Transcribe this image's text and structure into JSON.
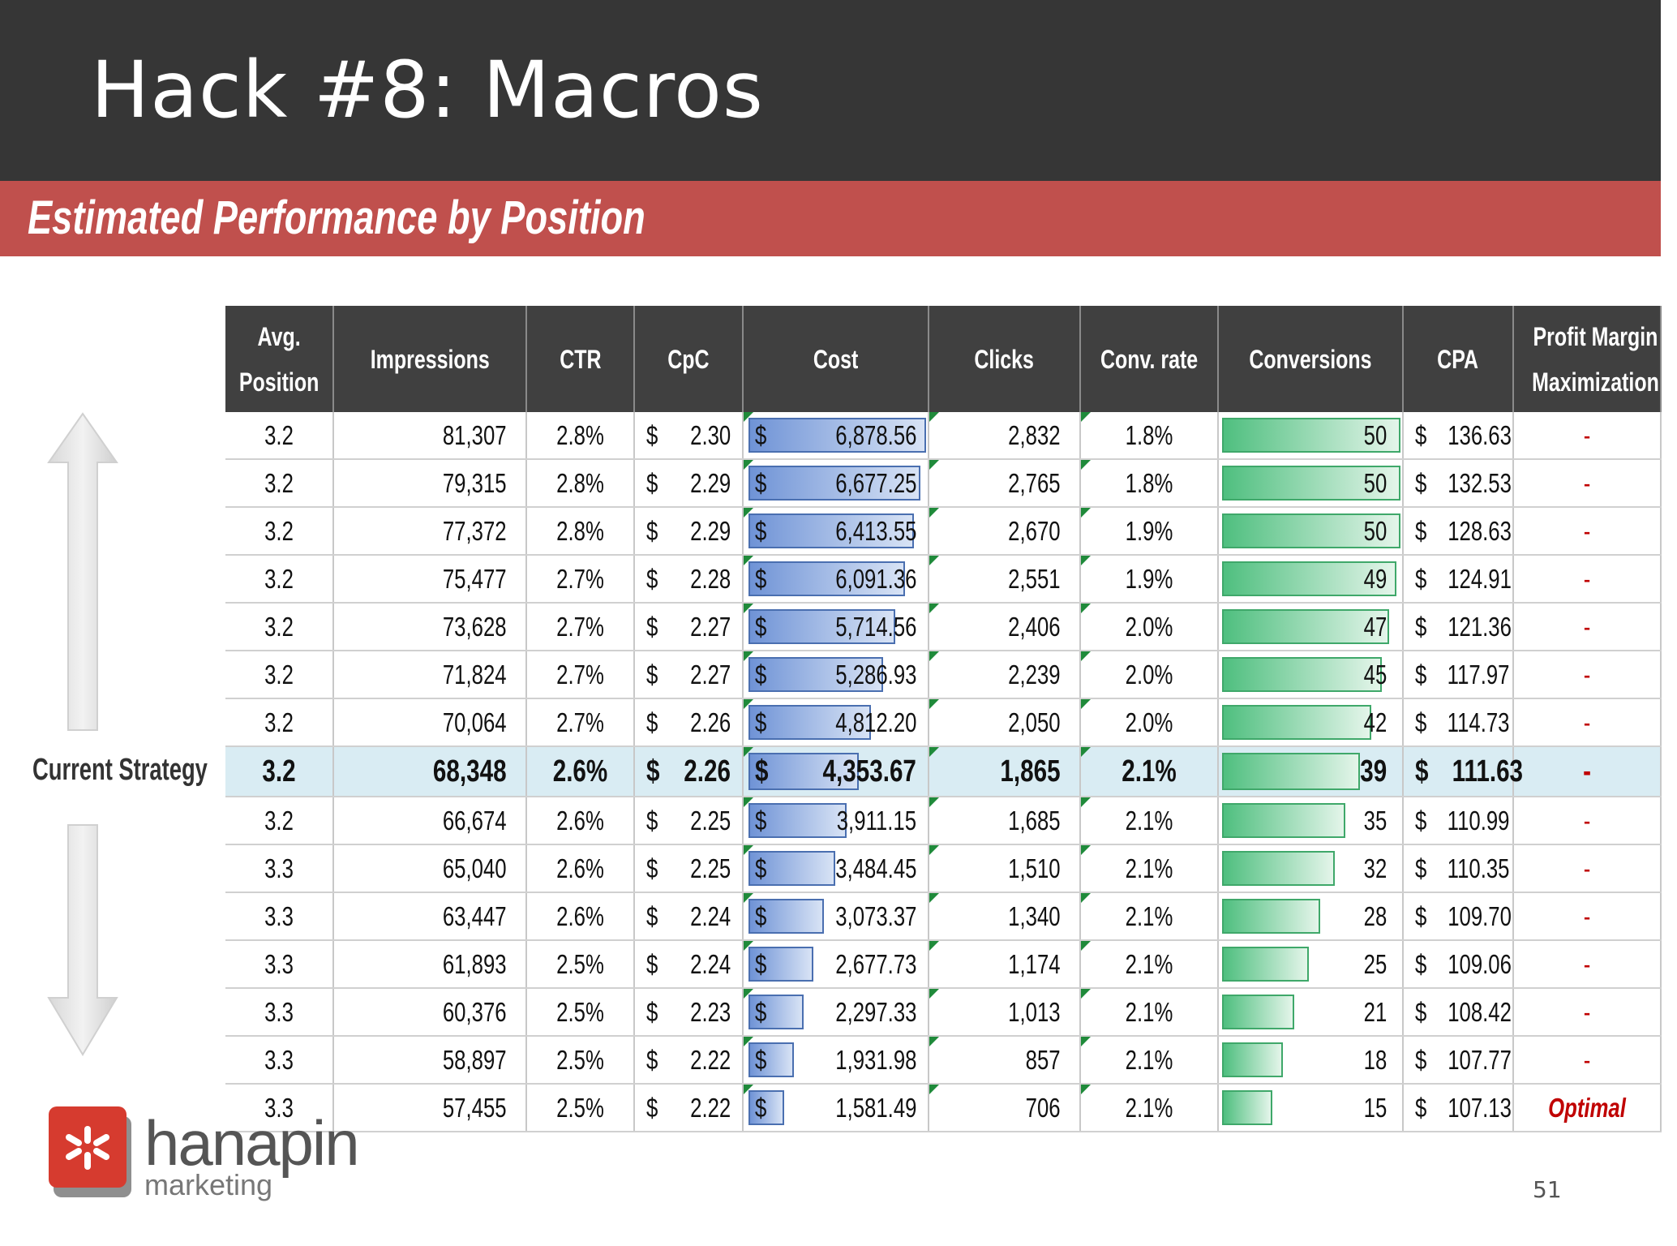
{
  "slide": {
    "title": "Hack #8: Macros",
    "section_title": "Estimated Performance by Position",
    "side_label": "Current Strategy",
    "page_number": "51"
  },
  "logo": {
    "word": "hanapin",
    "sub": "marketing",
    "icon": "asterisk-logo-icon"
  },
  "colors": {
    "title_bar": "#363636",
    "section_banner": "#c0504d",
    "header_fill": "#404040",
    "highlight_row": "#d9ecf3",
    "cost_bar": "#6f93d6",
    "conversion_bar": "#4fbf7f",
    "optimal_text": "#c00000"
  },
  "table": {
    "headers": [
      "Avg.\nPosition",
      "Impressions",
      "CTR",
      "CpC",
      "Cost",
      "Clicks",
      "Conv. rate",
      "Conversions",
      "CPA",
      "Profit Margin\nMaximization"
    ],
    "currency_symbol": "$",
    "highlight_row_index": 7,
    "rows": [
      {
        "pos": "3.2",
        "imp": "81,307",
        "ctr": "2.8%",
        "cpc": "2.30",
        "cost": "6,878.56",
        "cost_value": 6878.56,
        "clicks": "2,832",
        "conv_rate": "1.8%",
        "conv": "50",
        "conv_value": 50,
        "cpa": "136.63",
        "profit": "-"
      },
      {
        "pos": "3.2",
        "imp": "79,315",
        "ctr": "2.8%",
        "cpc": "2.29",
        "cost": "6,677.25",
        "cost_value": 6677.25,
        "clicks": "2,765",
        "conv_rate": "1.8%",
        "conv": "50",
        "conv_value": 50,
        "cpa": "132.53",
        "profit": "-"
      },
      {
        "pos": "3.2",
        "imp": "77,372",
        "ctr": "2.8%",
        "cpc": "2.29",
        "cost": "6,413.55",
        "cost_value": 6413.55,
        "clicks": "2,670",
        "conv_rate": "1.9%",
        "conv": "50",
        "conv_value": 50,
        "cpa": "128.63",
        "profit": "-"
      },
      {
        "pos": "3.2",
        "imp": "75,477",
        "ctr": "2.7%",
        "cpc": "2.28",
        "cost": "6,091.36",
        "cost_value": 6091.36,
        "clicks": "2,551",
        "conv_rate": "1.9%",
        "conv": "49",
        "conv_value": 49,
        "cpa": "124.91",
        "profit": "-"
      },
      {
        "pos": "3.2",
        "imp": "73,628",
        "ctr": "2.7%",
        "cpc": "2.27",
        "cost": "5,714.56",
        "cost_value": 5714.56,
        "clicks": "2,406",
        "conv_rate": "2.0%",
        "conv": "47",
        "conv_value": 47,
        "cpa": "121.36",
        "profit": "-"
      },
      {
        "pos": "3.2",
        "imp": "71,824",
        "ctr": "2.7%",
        "cpc": "2.27",
        "cost": "5,286.93",
        "cost_value": 5286.93,
        "clicks": "2,239",
        "conv_rate": "2.0%",
        "conv": "45",
        "conv_value": 45,
        "cpa": "117.97",
        "profit": "-"
      },
      {
        "pos": "3.2",
        "imp": "70,064",
        "ctr": "2.7%",
        "cpc": "2.26",
        "cost": "4,812.20",
        "cost_value": 4812.2,
        "clicks": "2,050",
        "conv_rate": "2.0%",
        "conv": "42",
        "conv_value": 42,
        "cpa": "114.73",
        "profit": "-"
      },
      {
        "pos": "3.2",
        "imp": "68,348",
        "ctr": "2.6%",
        "cpc": "2.26",
        "cost": "4,353.67",
        "cost_value": 4353.67,
        "clicks": "1,865",
        "conv_rate": "2.1%",
        "conv": "39",
        "conv_value": 39,
        "cpa": "111.63",
        "profit": "-"
      },
      {
        "pos": "3.2",
        "imp": "66,674",
        "ctr": "2.6%",
        "cpc": "2.25",
        "cost": "3,911.15",
        "cost_value": 3911.15,
        "clicks": "1,685",
        "conv_rate": "2.1%",
        "conv": "35",
        "conv_value": 35,
        "cpa": "110.99",
        "profit": "-"
      },
      {
        "pos": "3.3",
        "imp": "65,040",
        "ctr": "2.6%",
        "cpc": "2.25",
        "cost": "3,484.45",
        "cost_value": 3484.45,
        "clicks": "1,510",
        "conv_rate": "2.1%",
        "conv": "32",
        "conv_value": 32,
        "cpa": "110.35",
        "profit": "-"
      },
      {
        "pos": "3.3",
        "imp": "63,447",
        "ctr": "2.6%",
        "cpc": "2.24",
        "cost": "3,073.37",
        "cost_value": 3073.37,
        "clicks": "1,340",
        "conv_rate": "2.1%",
        "conv": "28",
        "conv_value": 28,
        "cpa": "109.70",
        "profit": "-"
      },
      {
        "pos": "3.3",
        "imp": "61,893",
        "ctr": "2.5%",
        "cpc": "2.24",
        "cost": "2,677.73",
        "cost_value": 2677.73,
        "clicks": "1,174",
        "conv_rate": "2.1%",
        "conv": "25",
        "conv_value": 25,
        "cpa": "109.06",
        "profit": "-"
      },
      {
        "pos": "3.3",
        "imp": "60,376",
        "ctr": "2.5%",
        "cpc": "2.23",
        "cost": "2,297.33",
        "cost_value": 2297.33,
        "clicks": "1,013",
        "conv_rate": "2.1%",
        "conv": "21",
        "conv_value": 21,
        "cpa": "108.42",
        "profit": "-"
      },
      {
        "pos": "3.3",
        "imp": "58,897",
        "ctr": "2.5%",
        "cpc": "2.22",
        "cost": "1,931.98",
        "cost_value": 1931.98,
        "clicks": "857",
        "conv_rate": "2.1%",
        "conv": "18",
        "conv_value": 18,
        "cpa": "107.77",
        "profit": "-"
      },
      {
        "pos": "3.3",
        "imp": "57,455",
        "ctr": "2.5%",
        "cpc": "2.22",
        "cost": "1,581.49",
        "cost_value": 1581.49,
        "clicks": "706",
        "conv_rate": "2.1%",
        "conv": "15",
        "conv_value": 15,
        "cpa": "107.13",
        "profit": "Optimal"
      }
    ]
  }
}
